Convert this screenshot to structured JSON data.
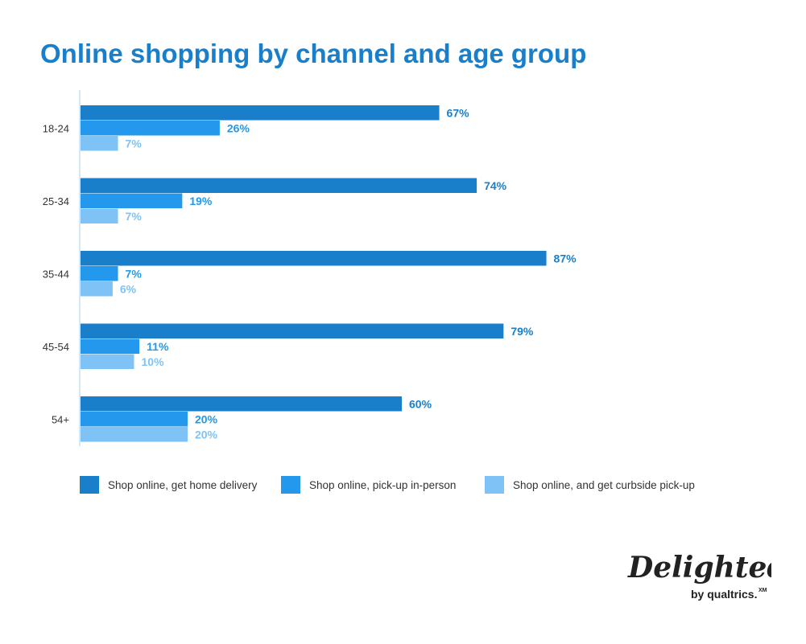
{
  "title": "Online shopping by channel and age group",
  "colors": {
    "home_delivery": "#1a7fcb",
    "pickup_in_person": "#2398ec",
    "curbside": "#7fc3f6",
    "title": "#1a7fcb"
  },
  "chart_data": {
    "type": "bar",
    "orientation": "horizontal",
    "title": "Online shopping by channel and age group",
    "categories": [
      "18-24",
      "25-34",
      "35-44",
      "45-54",
      "54+"
    ],
    "series": [
      {
        "name": "Shop online, get home delivery",
        "values": [
          67,
          74,
          87,
          79,
          60
        ]
      },
      {
        "name": "Shop online, pick-up in-person",
        "values": [
          26,
          19,
          7,
          11,
          20
        ]
      },
      {
        "name": "Shop online, and get curbside pick-up",
        "values": [
          7,
          7,
          6,
          10,
          20
        ]
      }
    ],
    "value_suffix": "%",
    "xlim": [
      0,
      100
    ],
    "grid": false,
    "legend_placement": "bottom"
  },
  "legend": [
    {
      "label": "Shop online, get home delivery"
    },
    {
      "label": "Shop online, pick-up in-person"
    },
    {
      "label": "Shop online, and get curbside pick-up"
    }
  ],
  "logo": {
    "brand": "Delighted",
    "byline": "by qualtrics.",
    "mark": "XM"
  }
}
